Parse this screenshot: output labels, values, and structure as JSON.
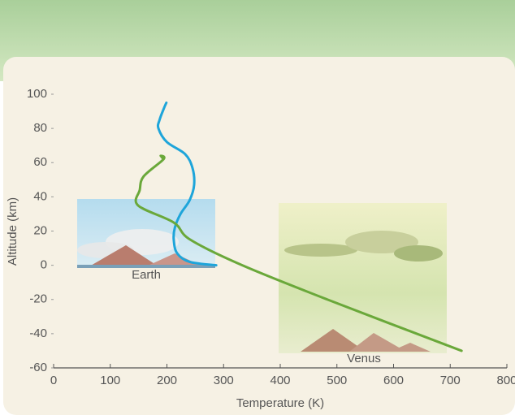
{
  "chart_data": {
    "type": "line",
    "xlabel": "Temperature (K)",
    "ylabel": "Altitude (km)",
    "xlim": [
      0,
      800
    ],
    "ylim": [
      -60,
      100
    ],
    "xticks": [
      0,
      100,
      200,
      300,
      400,
      500,
      600,
      700,
      800
    ],
    "yticks": [
      -60,
      -40,
      -20,
      0,
      20,
      40,
      60,
      80,
      100
    ],
    "annotations": [
      "Earth",
      "Venus"
    ],
    "series": [
      {
        "color": "#1ea5da",
        "x": [
          199,
          195,
          187,
          185,
          200,
          232,
          245,
          248,
          240,
          224,
          214,
          212,
          218,
          240,
          287
        ],
        "values": [
          95,
          92,
          85,
          80,
          72,
          65,
          57,
          47,
          38,
          30,
          22,
          15,
          7,
          2,
          0
        ]
      },
      {
        "color": "#6aa83a",
        "x": [
          194,
          189,
          194,
          159,
          152,
          149,
          212,
          241,
          333,
          483,
          720
        ],
        "values": [
          62,
          64,
          62,
          52,
          44,
          35,
          25,
          15,
          0,
          -20,
          -50
        ]
      }
    ]
  }
}
